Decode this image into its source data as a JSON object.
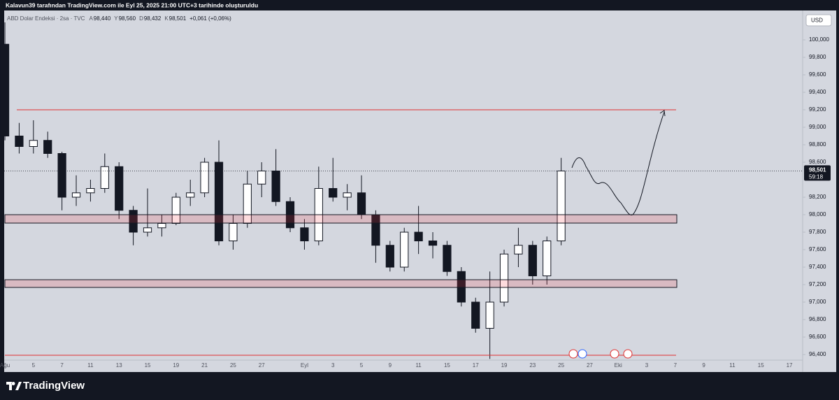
{
  "chart_data": {
    "type": "candlestick",
    "header": "Kalavun39 tarafından TradingView.com ile Eyl 25, 2025 21:00 UTC+3 tarihinde oluşturuldu",
    "legend": {
      "symbol": "ABD Dolar Endeksi · 2sa · TVC",
      "ohlc": [
        "A",
        "98,440",
        "Y",
        "98,560",
        "D",
        "98,432",
        "K",
        "98,501"
      ],
      "change": "+0,061 (+0,06%)"
    },
    "currency": "USD",
    "last_price": {
      "value": 98501,
      "label": "98,501"
    },
    "countdown": "59:18",
    "brand": "TradingView",
    "x": [
      0,
      1,
      2,
      3,
      4,
      5,
      6,
      7,
      8,
      9,
      10,
      11,
      12,
      13,
      14,
      15,
      16,
      17,
      18,
      19,
      20,
      21,
      22,
      23,
      24,
      25,
      26,
      27,
      28,
      29,
      30,
      31,
      32,
      33,
      34,
      35,
      36,
      37,
      38,
      39
    ],
    "open": [
      99950,
      98900,
      98780,
      98850,
      98700,
      98200,
      98250,
      98300,
      98550,
      98050,
      97800,
      97850,
      97900,
      98200,
      98250,
      98600,
      97700,
      97900,
      98350,
      98500,
      98150,
      97850,
      97700,
      98300,
      98200,
      98250,
      98000,
      97650,
      97400,
      97800,
      97700,
      97650,
      97350,
      97000,
      96700,
      97000,
      97550,
      97650,
      97300,
      97700
    ],
    "high": [
      100200,
      99050,
      99080,
      98950,
      98720,
      98450,
      98400,
      98700,
      98600,
      98100,
      98300,
      98000,
      98250,
      98400,
      98650,
      98850,
      98000,
      98500,
      98600,
      98750,
      98200,
      97950,
      98550,
      98650,
      98350,
      98450,
      98050,
      97700,
      97850,
      98100,
      97800,
      97700,
      97400,
      97050,
      97350,
      97600,
      97850,
      97700,
      97750,
      98650
    ],
    "low": [
      98850,
      98700,
      98700,
      98650,
      98050,
      98100,
      98150,
      98250,
      97950,
      97650,
      97750,
      97750,
      97880,
      98100,
      98200,
      97650,
      97600,
      97850,
      98200,
      98100,
      97800,
      97600,
      97650,
      98150,
      98050,
      97950,
      97450,
      97350,
      97350,
      97550,
      97500,
      97300,
      96950,
      96650,
      96350,
      96950,
      97400,
      97200,
      97200,
      97650
    ],
    "close": [
      98900,
      98780,
      98850,
      98700,
      98200,
      98250,
      98300,
      98550,
      98050,
      97800,
      97850,
      97900,
      98200,
      98250,
      98600,
      97700,
      97900,
      98350,
      98500,
      98150,
      97850,
      97700,
      98300,
      98200,
      98250,
      98000,
      97650,
      97400,
      97800,
      97700,
      97650,
      97350,
      97000,
      96700,
      97000,
      97550,
      97650,
      97300,
      97700,
      98500
    ],
    "up_color": "#ffffff",
    "down_color": "#131722",
    "border_color": "#131722",
    "xlim": [
      -0.05,
      55.93
    ],
    "xticks": [
      {
        "value": 0,
        "label": "Ağu"
      },
      {
        "value": 2,
        "label": "5"
      },
      {
        "value": 4,
        "label": "7"
      },
      {
        "value": 6,
        "label": "11"
      },
      {
        "value": 8,
        "label": "13"
      },
      {
        "value": 10,
        "label": "15"
      },
      {
        "value": 12,
        "label": "19"
      },
      {
        "value": 14,
        "label": "21"
      },
      {
        "value": 16,
        "label": "25"
      },
      {
        "value": 18,
        "label": "27"
      },
      {
        "value": 21,
        "label": "Eyl"
      },
      {
        "value": 23,
        "label": "3"
      },
      {
        "value": 25,
        "label": "5"
      },
      {
        "value": 27,
        "label": "9"
      },
      {
        "value": 29,
        "label": "11"
      },
      {
        "value": 31,
        "label": "15"
      },
      {
        "value": 33,
        "label": "17"
      },
      {
        "value": 35,
        "label": "19"
      },
      {
        "value": 37,
        "label": "23"
      },
      {
        "value": 39,
        "label": "25"
      },
      {
        "value": 41,
        "label": "27"
      },
      {
        "value": 43,
        "label": "Eki"
      },
      {
        "value": 45,
        "label": "3"
      },
      {
        "value": 47,
        "label": "7"
      },
      {
        "value": 49,
        "label": "9"
      },
      {
        "value": 51,
        "label": "11"
      },
      {
        "value": 53,
        "label": "15"
      },
      {
        "value": 55,
        "label": "17"
      }
    ],
    "ylim": [
      96336,
      100336
    ],
    "yticks": [
      {
        "value": 100000,
        "label": "100,000"
      },
      {
        "value": 99800,
        "label": "99,800"
      },
      {
        "value": 99600,
        "label": "99,600"
      },
      {
        "value": 99400,
        "label": "99,400"
      },
      {
        "value": 99200,
        "label": "99,200"
      },
      {
        "value": 99000,
        "label": "99,000"
      },
      {
        "value": 98800,
        "label": "98,800"
      },
      {
        "value": 98600,
        "label": "98,600"
      },
      {
        "value": 98200,
        "label": "98,200"
      },
      {
        "value": 98000,
        "label": "98,000"
      },
      {
        "value": 97800,
        "label": "97,800"
      },
      {
        "value": 97600,
        "label": "97,600"
      },
      {
        "value": 97400,
        "label": "97,400"
      },
      {
        "value": 97200,
        "label": "97,200"
      },
      {
        "value": 97000,
        "label": "97,000"
      },
      {
        "value": 96800,
        "label": "96,800"
      },
      {
        "value": 96600,
        "label": "96,600"
      },
      {
        "value": 96400,
        "label": "96,400"
      }
    ]
  }
}
